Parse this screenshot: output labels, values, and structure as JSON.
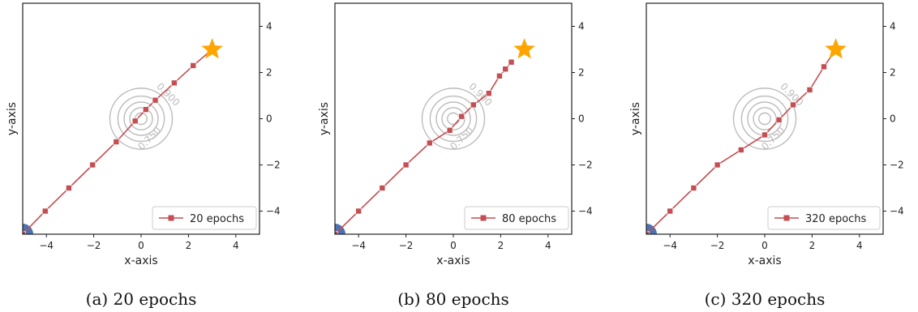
{
  "chart_data": [
    {
      "type": "line",
      "caption": "(a) 20 epochs",
      "xlabel": "x-axis",
      "ylabel": "y-axis",
      "xlim": [
        -5,
        5
      ],
      "ylim": [
        -5,
        5
      ],
      "xticks": [
        -4,
        -2,
        0,
        2,
        4
      ],
      "yticks": [
        -4,
        -2,
        0,
        2,
        4
      ],
      "x_tick_labels": [
        "−4",
        "−2",
        "0",
        "2",
        "4"
      ],
      "y_tick_labels": [
        "−4",
        "−2",
        "0",
        "2",
        "4"
      ],
      "legend_position": "lower-right",
      "contour_labels": [
        "0.900",
        "0.750"
      ],
      "start_point": [
        -5,
        -5
      ],
      "goal_point": [
        3,
        3
      ],
      "series": [
        {
          "name": "20 epochs",
          "x": [
            -5,
            -4.05,
            -3.05,
            -2.05,
            -1.05,
            -0.25,
            0.2,
            0.6,
            1.4,
            2.2,
            3.0
          ],
          "y": [
            -5,
            -4.0,
            -3.0,
            -2.0,
            -1.0,
            -0.1,
            0.4,
            0.8,
            1.55,
            2.3,
            3.0
          ]
        }
      ]
    },
    {
      "type": "line",
      "caption": "(b) 80 epochs",
      "xlabel": "x-axis",
      "ylabel": "y-axis",
      "xlim": [
        -5,
        5
      ],
      "ylim": [
        -5,
        5
      ],
      "xticks": [
        -4,
        -2,
        0,
        2,
        4
      ],
      "yticks": [
        -4,
        -2,
        0,
        2,
        4
      ],
      "x_tick_labels": [
        "−4",
        "−2",
        "0",
        "2",
        "4"
      ],
      "y_tick_labels": [
        "−4",
        "−2",
        "0",
        "2",
        "4"
      ],
      "legend_position": "lower-right",
      "contour_labels": [
        "0.900",
        "0.750"
      ],
      "start_point": [
        -5,
        -5
      ],
      "goal_point": [
        3,
        3
      ],
      "series": [
        {
          "name": "80 epochs",
          "x": [
            -5,
            -4.0,
            -3.0,
            -2.0,
            -1.0,
            -0.15,
            0.35,
            0.85,
            1.5,
            1.95,
            2.2,
            2.45
          ],
          "y": [
            -5,
            -4.0,
            -3.0,
            -2.0,
            -1.05,
            -0.5,
            0.1,
            0.6,
            1.1,
            1.85,
            2.15,
            2.45
          ]
        }
      ]
    },
    {
      "type": "line",
      "caption": "(c) 320 epochs",
      "xlabel": "x-axis",
      "ylabel": "y-axis",
      "xlim": [
        -5,
        5
      ],
      "ylim": [
        -5,
        5
      ],
      "xticks": [
        -4,
        -2,
        0,
        2,
        4
      ],
      "yticks": [
        -4,
        -2,
        0,
        2,
        4
      ],
      "x_tick_labels": [
        "−4",
        "−2",
        "0",
        "2",
        "4"
      ],
      "y_tick_labels": [
        "−4",
        "−2",
        "0",
        "2",
        "4"
      ],
      "legend_position": "lower-right",
      "contour_labels": [
        "0.900",
        "0.750"
      ],
      "start_point": [
        -5,
        -5
      ],
      "goal_point": [
        3,
        3
      ],
      "series": [
        {
          "name": "320 epochs",
          "x": [
            -5,
            -4.0,
            -3.0,
            -2.0,
            -1.0,
            0.0,
            0.6,
            1.2,
            1.9,
            2.5,
            3.0
          ],
          "y": [
            -5,
            -4.0,
            -3.0,
            -2.0,
            -1.35,
            -0.7,
            -0.05,
            0.6,
            1.25,
            2.25,
            3.0
          ]
        }
      ]
    }
  ],
  "colors": {
    "line": "#c44e52",
    "marker_edge": "#ffffff",
    "start": "#4c72b0",
    "goal": "#ffa500",
    "contour": "#bbbbbb",
    "frame": "#222222"
  }
}
